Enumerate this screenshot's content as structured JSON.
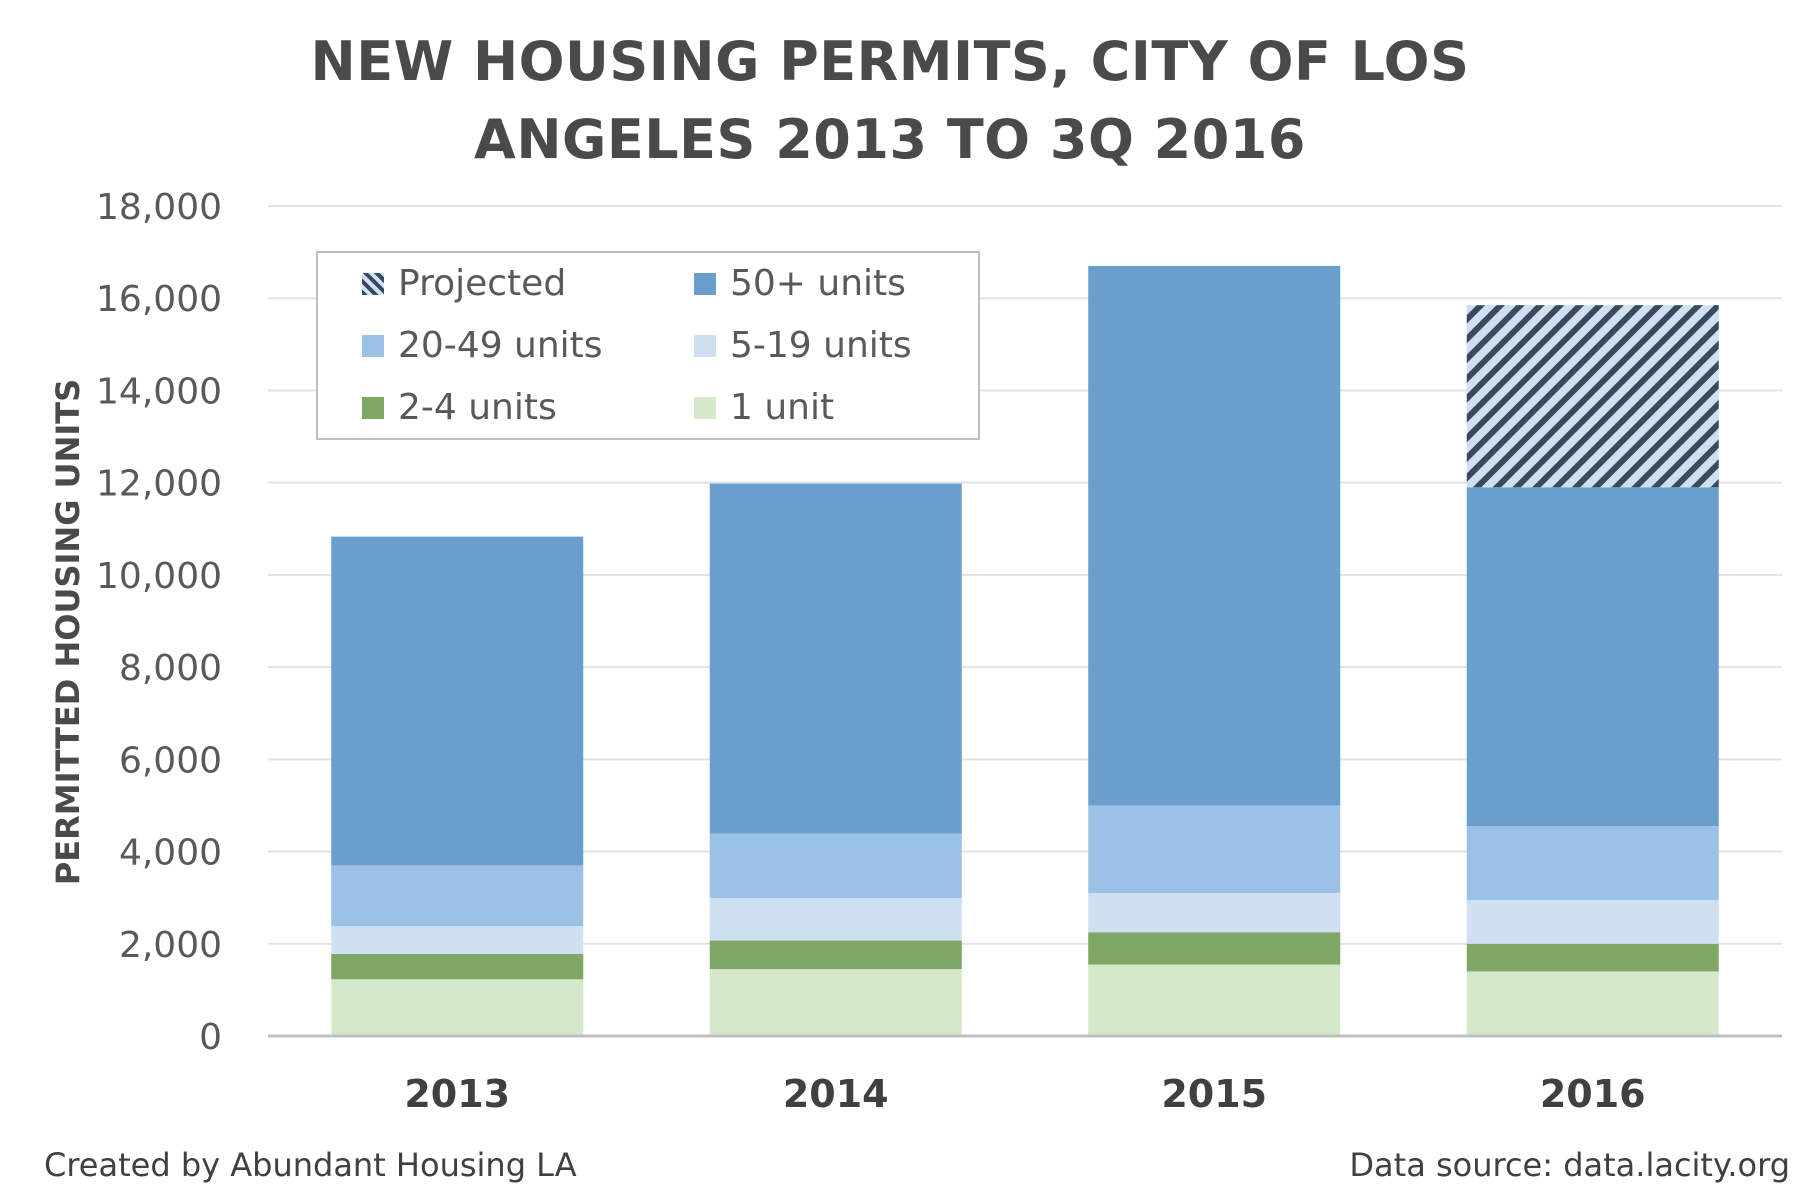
{
  "title_line1": "NEW HOUSING PERMITS, CITY OF LOS",
  "title_line2": "ANGELES 2013 TO 3Q 2016",
  "footer": {
    "credit": "Created by Abundant Housing LA",
    "source": "Data source: data.lacity.org"
  },
  "colors": {
    "one_unit": "#d6e8ca",
    "two_four": "#7ea665",
    "five_nineteen": "#cfe0f0",
    "twenty_fortynine": "#9bc2e6",
    "fifty_plus": "#6a9fcd",
    "projected_dark": "#3a4a5e",
    "projected_light": "#d0e0f0",
    "grid": "#e3e3e3",
    "axis": "#bfbfbf"
  },
  "chart_data": {
    "type": "bar",
    "stacked": true,
    "title": "NEW HOUSING PERMITS, CITY OF LOS ANGELES 2013 TO 3Q 2016",
    "xlabel": "",
    "ylabel": "PERMITTED HOUSING UNITS",
    "ylim": [
      0,
      18000
    ],
    "yticks": [
      "0",
      "2,000",
      "4,000",
      "6,000",
      "8,000",
      "10,000",
      "12,000",
      "14,000",
      "16,000",
      "18,000"
    ],
    "ytick_values": [
      0,
      2000,
      4000,
      6000,
      8000,
      10000,
      12000,
      14000,
      16000,
      18000
    ],
    "grid": true,
    "legend_position": "top-left",
    "categories": [
      "2013",
      "2014",
      "2015",
      "2016"
    ],
    "series": [
      {
        "name": "1 unit",
        "values": [
          1230,
          1450,
          1550,
          1400
        ],
        "color_key": "one_unit"
      },
      {
        "name": "2-4 units",
        "values": [
          550,
          620,
          700,
          600
        ],
        "color_key": "two_four"
      },
      {
        "name": "5-19 units",
        "values": [
          600,
          920,
          850,
          950
        ],
        "color_key": "five_nineteen"
      },
      {
        "name": "20-49 units",
        "values": [
          1320,
          1400,
          1900,
          1600
        ],
        "color_key": "twenty_fortynine"
      },
      {
        "name": "50+ units",
        "values": [
          7130,
          7590,
          11700,
          7350
        ],
        "color_key": "fifty_plus"
      },
      {
        "name": "Projected",
        "values": [
          0,
          0,
          0,
          3950
        ],
        "color_key": "projected"
      }
    ],
    "legend_order": [
      "Projected",
      "50+ units",
      "20-49 units",
      "5-19 units",
      "2-4 units",
      "1 unit"
    ]
  }
}
